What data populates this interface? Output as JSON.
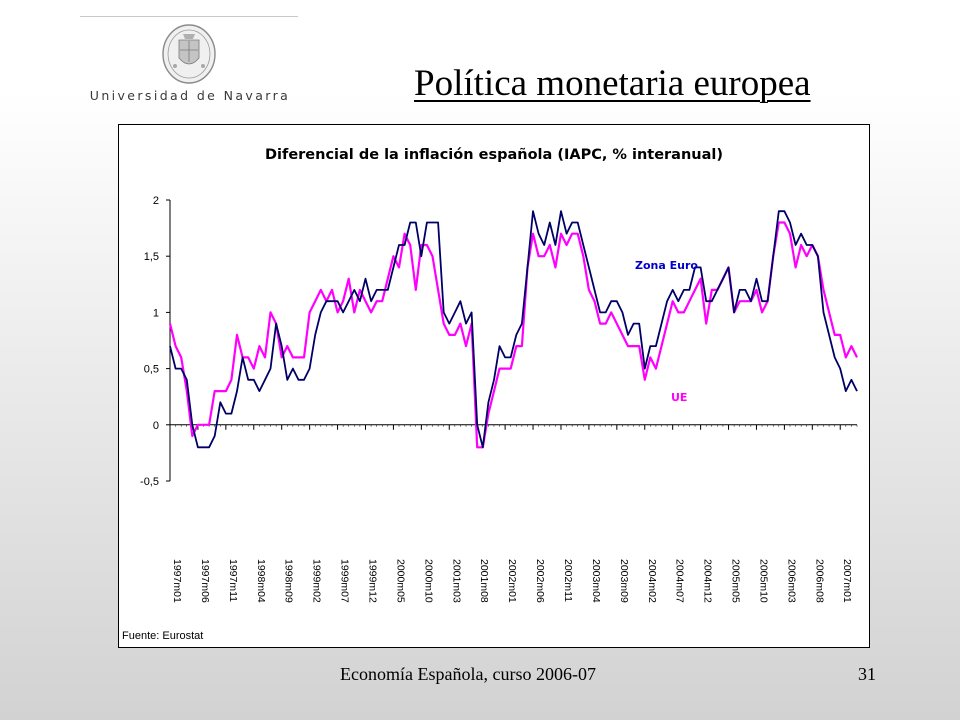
{
  "slide": {
    "title": "Política monetaria europea",
    "logo_text": "Universidad de Navarra",
    "footer": "Economía Española, curso 2006-07",
    "page_number": "31"
  },
  "chart_data": {
    "type": "line",
    "title": "Diferencial de la inflación española (IAPC, % interanual)",
    "source": "Fuente: Eurostat",
    "xlabel": "",
    "ylabel": "",
    "ylim": [
      -0.5,
      2
    ],
    "yticks": [
      -0.5,
      0,
      0.5,
      1,
      1.5,
      2
    ],
    "ytick_labels": [
      "-0,5",
      "0",
      "0,5",
      "1",
      "1,5",
      "2"
    ],
    "x_start": "1997m01",
    "x_end": "2007m03",
    "x_tick_labels": [
      "1997m01",
      "1997m06",
      "1997m11",
      "1998m04",
      "1998m09",
      "1999m02",
      "1999m07",
      "1999m12",
      "2000m05",
      "2000m10",
      "2001m03",
      "2001m08",
      "2002m01",
      "2002m06",
      "2002m11",
      "2003m04",
      "2003m09",
      "2004m02",
      "2004m07",
      "2004m12",
      "2005m05",
      "2005m10",
      "2006m03",
      "2006m08",
      "2007m01"
    ],
    "grid": false,
    "legend": "inline labels",
    "series": [
      {
        "name": "Zona Euro",
        "color": "#000066",
        "values": [
          0.7,
          0.5,
          0.5,
          0.4,
          0.0,
          -0.2,
          -0.2,
          -0.2,
          -0.1,
          0.2,
          0.1,
          0.1,
          0.3,
          0.6,
          0.4,
          0.4,
          0.3,
          0.4,
          0.5,
          0.9,
          0.7,
          0.4,
          0.5,
          0.4,
          0.4,
          0.5,
          0.8,
          1.0,
          1.1,
          1.1,
          1.1,
          1.0,
          1.1,
          1.2,
          1.1,
          1.3,
          1.1,
          1.2,
          1.2,
          1.2,
          1.4,
          1.6,
          1.6,
          1.8,
          1.8,
          1.5,
          1.8,
          1.8,
          1.8,
          1.0,
          0.9,
          1.0,
          1.1,
          0.9,
          1.0,
          0.0,
          -0.2,
          0.2,
          0.4,
          0.7,
          0.6,
          0.6,
          0.8,
          0.9,
          1.4,
          1.9,
          1.7,
          1.6,
          1.8,
          1.6,
          1.9,
          1.7,
          1.8,
          1.8,
          1.6,
          1.4,
          1.2,
          1.0,
          1.0,
          1.1,
          1.1,
          1.0,
          0.8,
          0.9,
          0.9,
          0.5,
          0.7,
          0.7,
          0.9,
          1.1,
          1.2,
          1.1,
          1.2,
          1.2,
          1.4,
          1.4,
          1.1,
          1.1,
          1.2,
          1.3,
          1.4,
          1.0,
          1.2,
          1.2,
          1.1,
          1.3,
          1.1,
          1.1,
          1.5,
          1.9,
          1.9,
          1.8,
          1.6,
          1.7,
          1.6,
          1.6,
          1.5,
          1.0,
          0.8,
          0.6,
          0.5,
          0.3,
          0.4,
          0.3
        ]
      },
      {
        "name": "UE",
        "color": "#ff00ff",
        "values": [
          0.9,
          0.7,
          0.6,
          0.3,
          -0.1,
          0.0,
          0.0,
          0.0,
          0.3,
          0.3,
          0.3,
          0.4,
          0.8,
          0.6,
          0.6,
          0.5,
          0.7,
          0.6,
          1.0,
          0.9,
          0.6,
          0.7,
          0.6,
          0.6,
          0.6,
          1.0,
          1.1,
          1.2,
          1.1,
          1.2,
          1.0,
          1.1,
          1.3,
          1.0,
          1.2,
          1.1,
          1.0,
          1.1,
          1.1,
          1.3,
          1.5,
          1.4,
          1.7,
          1.6,
          1.2,
          1.6,
          1.6,
          1.5,
          1.2,
          0.9,
          0.8,
          0.8,
          0.9,
          0.7,
          0.9,
          -0.2,
          -0.2,
          0.1,
          0.3,
          0.5,
          0.5,
          0.5,
          0.7,
          0.7,
          1.4,
          1.7,
          1.5,
          1.5,
          1.6,
          1.4,
          1.7,
          1.6,
          1.7,
          1.7,
          1.5,
          1.2,
          1.1,
          0.9,
          0.9,
          1.0,
          0.9,
          0.8,
          0.7,
          0.7,
          0.7,
          0.4,
          0.6,
          0.5,
          0.7,
          0.9,
          1.1,
          1.0,
          1.0,
          1.1,
          1.2,
          1.3,
          0.9,
          1.2,
          1.2,
          1.3,
          1.4,
          1.0,
          1.1,
          1.1,
          1.1,
          1.2,
          1.0,
          1.1,
          1.5,
          1.8,
          1.8,
          1.7,
          1.4,
          1.6,
          1.5,
          1.6,
          1.5,
          1.2,
          1.0,
          0.8,
          0.8,
          0.6,
          0.7,
          0.6
        ]
      }
    ]
  }
}
